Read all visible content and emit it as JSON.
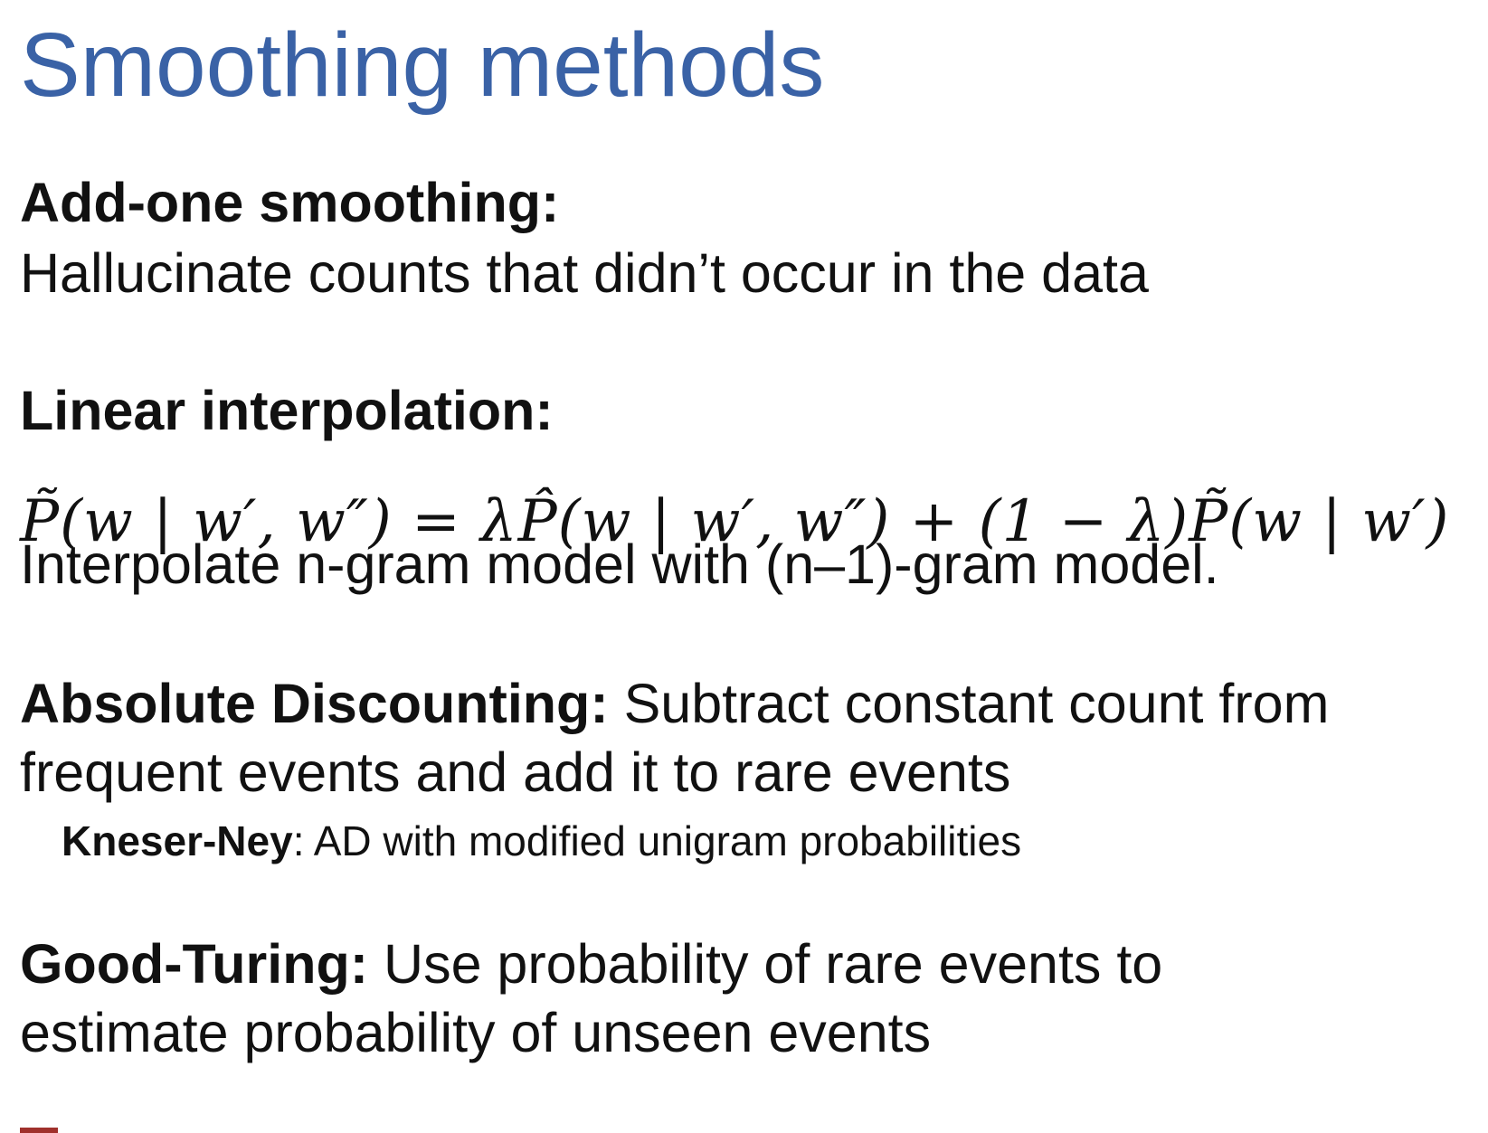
{
  "title": "Smoothing methods",
  "sections": {
    "add_one": {
      "heading": "Add-one smoothing:",
      "text": "Hallucinate counts that didn’t occur in the data"
    },
    "linear": {
      "heading": "Linear interpolation:",
      "formula": "P̃(w | w′, w″) = λP̂(w | w′, w″) + (1 − λ)P̃(w | w′)",
      "text": "Interpolate n-gram model with (n–1)-gram model."
    },
    "absolute": {
      "heading": "Absolute Discounting:",
      "text_line1": " Subtract constant count from",
      "text_line2": "frequent events and add it to rare events",
      "kn_label": "Kneser-Ney",
      "kn_text": ": AD with modified unigram probabilities"
    },
    "good_turing": {
      "heading": "Good-Turing:",
      "text_line1": " Use probability of rare events to",
      "text_line2": "estimate probability of unseen events"
    }
  },
  "colors": {
    "title": "#3a62a6",
    "text": "#111111",
    "bottom_mark": "#a0302c"
  }
}
